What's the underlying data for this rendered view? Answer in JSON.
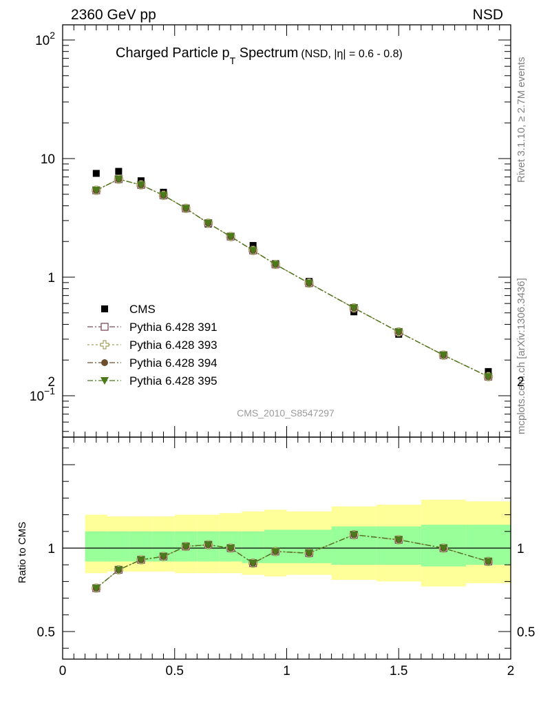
{
  "header": {
    "left": "2360 GeV pp",
    "right": "NSD"
  },
  "side_labels": {
    "rivet": "Rivet 3.1.10, ≥ 2.7M events",
    "mcplots": "mcplots.cern.ch [arXiv:1306.3436]"
  },
  "title": {
    "main_prefix": "Charged Particle p",
    "main_sub": "T",
    "main_suffix": " Spectrum",
    "small": "(NSD, |η| = 0.6 - 0.8)"
  },
  "watermark": "CMS_2010_S8547297",
  "ratio_ylabel": "Ratio to CMS",
  "colors": {
    "cms": "#000000",
    "p391": "#7a4a5a",
    "p393": "#a0a060",
    "p394": "#6b4e2e",
    "p395": "#4a7a1a",
    "band_outer": "#ffff99",
    "band_inner": "#99ff99"
  },
  "chart_data": [
    {
      "type": "scatter",
      "yscale": "log",
      "xlim": [
        0,
        2
      ],
      "ylim": [
        0.045,
        130
      ],
      "y_tick_labels": [
        "10^-1",
        "1",
        "10",
        "10^2"
      ],
      "x": [
        0.15,
        0.25,
        0.35,
        0.45,
        0.55,
        0.65,
        0.75,
        0.85,
        0.95,
        1.1,
        1.3,
        1.5,
        1.7,
        1.9
      ],
      "series": [
        {
          "name": "CMS",
          "marker": "square",
          "values": [
            7.5,
            7.8,
            6.5,
            5.2,
            3.8,
            2.8,
            2.2,
            1.85,
            1.3,
            0.92,
            0.51,
            0.33,
            0.22,
            0.16
          ]
        },
        {
          "name": "Pythia 6.428 391",
          "marker": "open-square",
          "values": [
            5.4,
            6.7,
            6.0,
            4.9,
            3.8,
            2.85,
            2.2,
            1.68,
            1.28,
            0.89,
            0.55,
            0.345,
            0.22,
            0.145
          ]
        },
        {
          "name": "Pythia 6.428 393",
          "marker": "open-cross",
          "values": [
            5.4,
            6.7,
            6.0,
            4.9,
            3.8,
            2.85,
            2.2,
            1.68,
            1.28,
            0.89,
            0.55,
            0.345,
            0.22,
            0.145
          ]
        },
        {
          "name": "Pythia 6.428 394",
          "marker": "circle",
          "values": [
            5.4,
            6.7,
            6.0,
            4.9,
            3.8,
            2.85,
            2.2,
            1.68,
            1.28,
            0.89,
            0.55,
            0.345,
            0.22,
            0.145
          ]
        },
        {
          "name": "Pythia 6.428 395",
          "marker": "triangle-down",
          "values": [
            5.4,
            6.7,
            6.0,
            4.9,
            3.8,
            2.85,
            2.2,
            1.68,
            1.28,
            0.89,
            0.55,
            0.345,
            0.22,
            0.145
          ]
        }
      ]
    },
    {
      "type": "line",
      "xlim": [
        0,
        2
      ],
      "ylim": [
        0.35,
        2.35
      ],
      "x_tick_labels": [
        "0",
        "0.5",
        "1",
        "1.5",
        "2"
      ],
      "y_tick_labels": [
        "0.5",
        "1",
        "2"
      ],
      "bins": [
        [
          0.1,
          0.2
        ],
        [
          0.2,
          0.3
        ],
        [
          0.3,
          0.4
        ],
        [
          0.4,
          0.5
        ],
        [
          0.5,
          0.6
        ],
        [
          0.6,
          0.7
        ],
        [
          0.7,
          0.8
        ],
        [
          0.8,
          0.9
        ],
        [
          0.9,
          1.0
        ],
        [
          1.0,
          1.2
        ],
        [
          1.2,
          1.4
        ],
        [
          1.4,
          1.6
        ],
        [
          1.6,
          1.8
        ],
        [
          1.8,
          2.0
        ]
      ],
      "band_outer": [
        [
          0.85,
          1.2
        ],
        [
          0.86,
          1.19
        ],
        [
          0.86,
          1.19
        ],
        [
          0.86,
          1.19
        ],
        [
          0.85,
          1.2
        ],
        [
          0.85,
          1.2
        ],
        [
          0.85,
          1.21
        ],
        [
          0.84,
          1.22
        ],
        [
          0.83,
          1.23
        ],
        [
          0.84,
          1.22
        ],
        [
          0.81,
          1.25
        ],
        [
          0.8,
          1.26
        ],
        [
          0.77,
          1.29
        ],
        [
          0.79,
          1.28
        ]
      ],
      "band_inner": [
        [
          0.92,
          1.1
        ],
        [
          0.92,
          1.1
        ],
        [
          0.92,
          1.1
        ],
        [
          0.92,
          1.1
        ],
        [
          0.92,
          1.1
        ],
        [
          0.92,
          1.1
        ],
        [
          0.92,
          1.1
        ],
        [
          0.91,
          1.1
        ],
        [
          0.91,
          1.11
        ],
        [
          0.91,
          1.11
        ],
        [
          0.9,
          1.13
        ],
        [
          0.9,
          1.13
        ],
        [
          0.89,
          1.14
        ],
        [
          0.9,
          1.14
        ]
      ],
      "series": [
        {
          "name": "Pythia 6.428 391",
          "values": [
            0.76,
            0.87,
            0.93,
            0.95,
            1.01,
            1.02,
            1.0,
            0.91,
            0.98,
            0.97,
            1.08,
            1.05,
            1.0,
            0.92
          ]
        },
        {
          "name": "Pythia 6.428 393",
          "values": [
            0.76,
            0.87,
            0.93,
            0.95,
            1.01,
            1.02,
            1.0,
            0.91,
            0.98,
            0.97,
            1.08,
            1.05,
            1.0,
            0.92
          ]
        },
        {
          "name": "Pythia 6.428 394",
          "values": [
            0.76,
            0.87,
            0.93,
            0.95,
            1.01,
            1.02,
            1.0,
            0.91,
            0.98,
            0.97,
            1.08,
            1.05,
            1.0,
            0.92
          ]
        },
        {
          "name": "Pythia 6.428 395",
          "values": [
            0.76,
            0.87,
            0.93,
            0.95,
            1.01,
            1.02,
            1.0,
            0.91,
            0.98,
            0.97,
            1.08,
            1.05,
            1.0,
            0.92
          ]
        }
      ]
    }
  ]
}
